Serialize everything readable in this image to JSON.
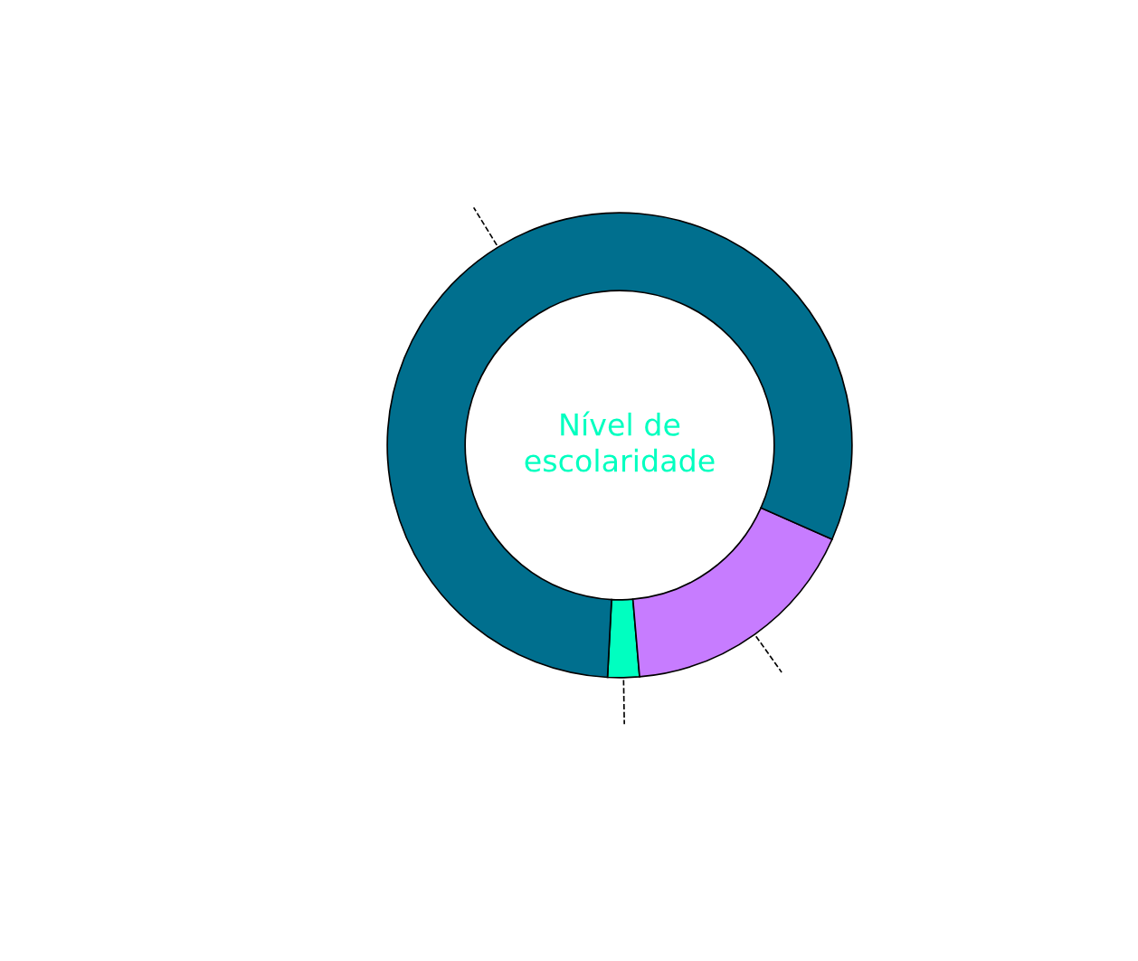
{
  "chart_data": {
    "type": "donut",
    "title": "Nível de\nescolaridade",
    "categories": [
      null,
      null,
      null
    ],
    "values": [
      2.2,
      17.0,
      80.8
    ],
    "colors": [
      "#00ffc0",
      "#c77cff",
      "#006f8e"
    ]
  }
}
